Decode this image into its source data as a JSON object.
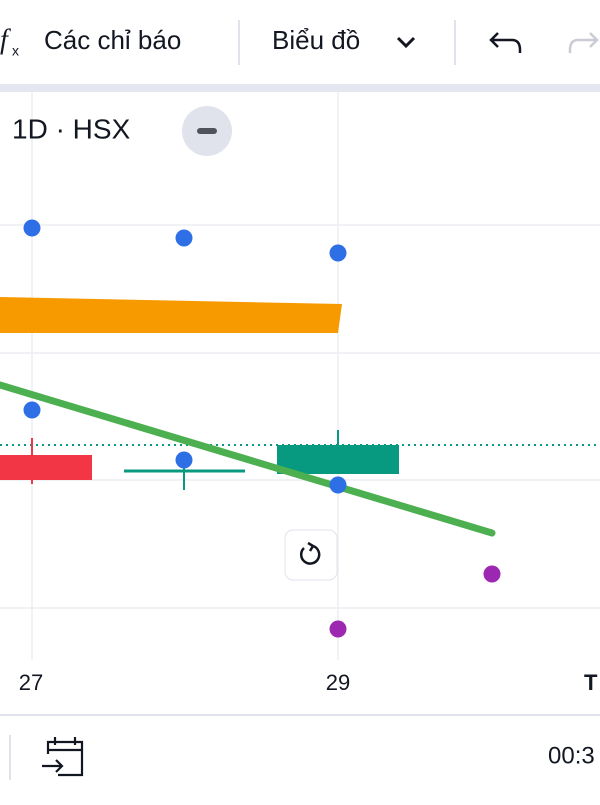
{
  "toolbar": {
    "indicators": "Các chỉ báo",
    "chart_menu": "Biểu đồ"
  },
  "legend": {
    "symbol": "1D · HSX"
  },
  "x_axis": {
    "labels": [
      "27",
      "29",
      "T"
    ]
  },
  "bottom_bar": {
    "time": "00:3"
  }
}
